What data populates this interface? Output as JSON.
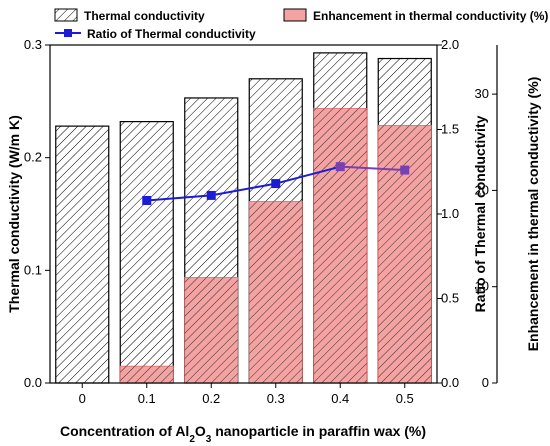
{
  "chart_data": {
    "type": "bar",
    "title": "",
    "categories": [
      "0",
      "0.1",
      "0.2",
      "0.3",
      "0.4",
      "0.5"
    ],
    "series": [
      {
        "name": "Thermal conductivity",
        "kind": "bar",
        "axis": "left",
        "values": [
          0.228,
          0.232,
          0.253,
          0.27,
          0.293,
          0.288
        ],
        "fill": "#ffffff",
        "pattern": "diagonal-hatch"
      },
      {
        "name": "Enhancement in thermal conductivity (%)",
        "kind": "bar",
        "axis": "right-outer",
        "values": [
          0,
          1.75,
          10.96,
          18.86,
          28.51,
          26.75
        ],
        "fill": "#f4a3a3",
        "pattern": "diagonal-hatch"
      },
      {
        "name": "Ratio of Thermal conductivity",
        "kind": "line",
        "axis": "right-inner",
        "values": [
          null,
          1.08,
          1.11,
          1.18,
          1.28,
          1.26
        ],
        "color": "#1c1cd6",
        "marker": "square"
      }
    ],
    "xlabel": {
      "parts": [
        {
          "text": "Concentration of Al",
          "sub": false
        },
        {
          "text": "2",
          "sub": true
        },
        {
          "text": "O",
          "sub": false
        },
        {
          "text": "3",
          "sub": true
        },
        {
          "text": " nanoparticle in paraffin wax (%)",
          "sub": false
        }
      ]
    },
    "axes": {
      "left": {
        "label": "Thermal conductivity (W/m K)",
        "min": 0,
        "max": 0.3,
        "ticks": [
          0.0,
          0.1,
          0.2,
          0.3
        ],
        "tick_labels": [
          "0.0",
          "0.1",
          "0.2",
          "0.3"
        ]
      },
      "right_inner": {
        "label": "Ratio of Thermal conductivity",
        "min": 0,
        "max": 2.0,
        "ticks": [
          0.0,
          0.5,
          1.0,
          1.5,
          2.0
        ],
        "tick_labels": [
          "0.0",
          "0.5",
          "1.0",
          "1.5",
          "2.0"
        ]
      },
      "right_outer": {
        "label": "Enhancement in thermal conductivity (%)",
        "min": 0,
        "max": 35.1,
        "ticks": [
          0,
          10,
          20,
          30
        ],
        "tick_labels": [
          "0",
          "10",
          "20",
          "30"
        ]
      }
    },
    "legend": "top",
    "grid": false,
    "colors": {
      "line": "#1c1cd6",
      "line_last_segment": "#7a3fb0",
      "enhancement_fill": "#f4a3a3",
      "hatch": "#000000"
    }
  }
}
